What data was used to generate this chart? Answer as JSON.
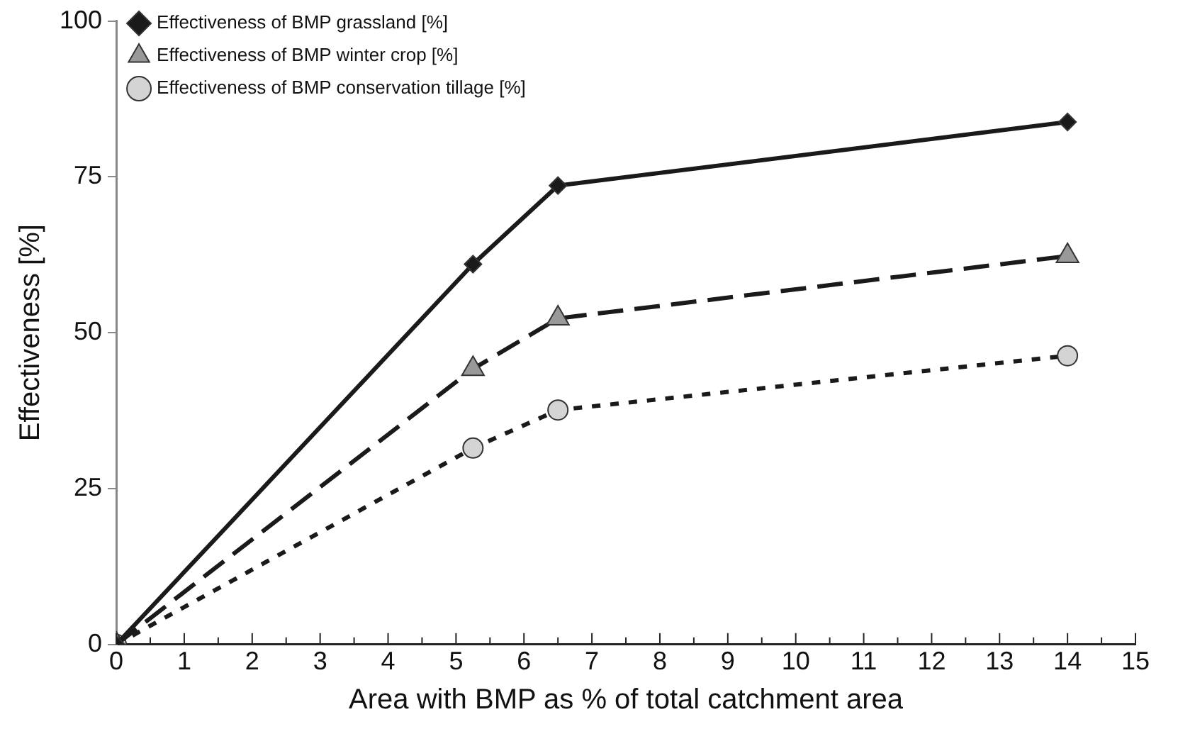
{
  "chart_data": {
    "type": "line",
    "xlabel": "Area with BMP as % of total catchment area",
    "ylabel": "Effectiveness [%]",
    "x": [
      0,
      5.25,
      6.5,
      14
    ],
    "series": [
      {
        "name": "Effectiveness of BMP grassland [%]",
        "color": "#1a1a1a",
        "marker": "diamond",
        "line_style": "solid",
        "values": [
          0,
          61,
          73.6,
          83.8
        ]
      },
      {
        "name": "Effectiveness of BMP winter crop [%]",
        "color": "#999999",
        "marker": "triangle",
        "line_style": "dashed",
        "values": [
          0,
          44.2,
          52.3,
          62.3
        ]
      },
      {
        "name": "Effectiveness of BMP conservation tillage [%]",
        "color": "#d4d4d4",
        "marker": "circle",
        "line_style": "dotted",
        "values": [
          0,
          31.5,
          37.6,
          46.3
        ]
      }
    ],
    "xlim": [
      0,
      15
    ],
    "xticks": [
      0,
      1,
      2,
      3,
      4,
      5,
      6,
      7,
      8,
      9,
      10,
      11,
      12,
      13,
      14,
      15
    ],
    "ylim": [
      0,
      100
    ],
    "yticks": [
      0,
      25,
      50,
      75,
      100
    ],
    "grid": false,
    "legend": "top left"
  }
}
